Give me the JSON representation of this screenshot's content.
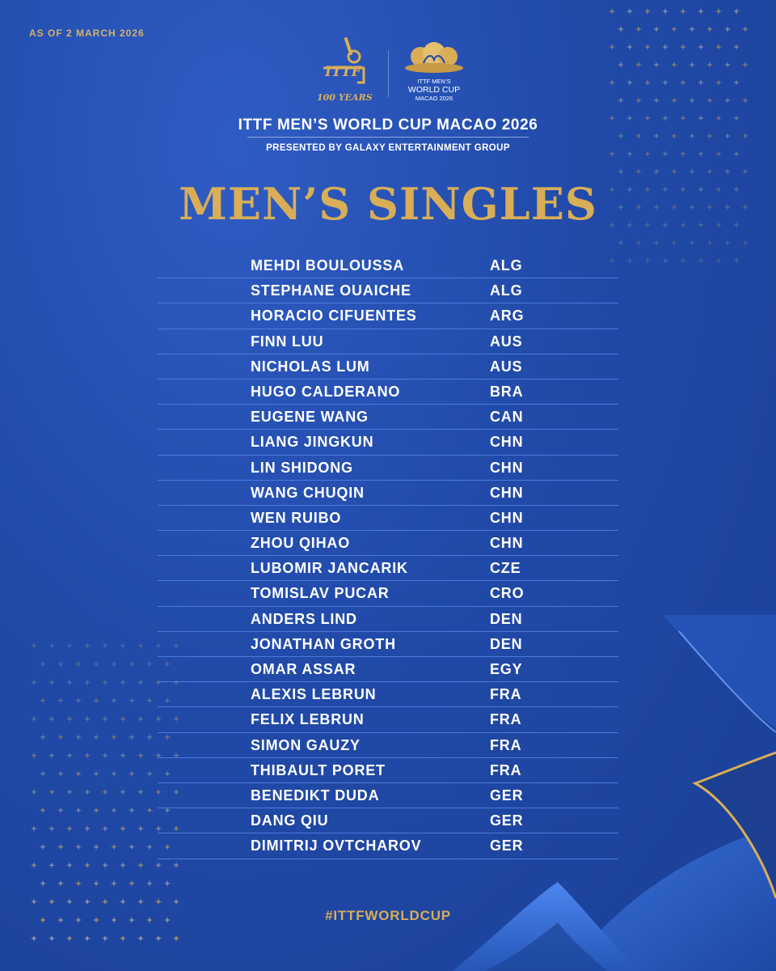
{
  "header": {
    "as_of": "AS OF 2 MARCH 2026",
    "event_title": "ITTF MEN’S WORLD CUP MACAO 2026",
    "presented_by": "PRESENTED BY GALAXY ENTERTAINMENT GROUP",
    "main_title": "MEN’S SINGLES"
  },
  "logos": {
    "ittf_text": "ITTF",
    "ittf_years": "100 YEARS",
    "wc_line1": "ITTF MEN’S",
    "wc_line2": "WORLD CUP",
    "wc_line3": "MACAO 2026"
  },
  "players": [
    {
      "name": "MEHDI BOULOUSSA",
      "country": "ALG"
    },
    {
      "name": "STEPHANE OUAICHE",
      "country": "ALG"
    },
    {
      "name": "HORACIO CIFUENTES",
      "country": "ARG"
    },
    {
      "name": "FINN LUU",
      "country": "AUS"
    },
    {
      "name": "NICHOLAS LUM",
      "country": "AUS"
    },
    {
      "name": "HUGO CALDERANO",
      "country": "BRA"
    },
    {
      "name": "EUGENE WANG",
      "country": "CAN"
    },
    {
      "name": "LIANG JINGKUN",
      "country": "CHN"
    },
    {
      "name": "LIN SHIDONG",
      "country": "CHN"
    },
    {
      "name": "WANG CHUQIN",
      "country": "CHN"
    },
    {
      "name": "WEN RUIBO",
      "country": "CHN"
    },
    {
      "name": "ZHOU QIHAO",
      "country": "CHN"
    },
    {
      "name": "LUBOMIR JANCARIK",
      "country": "CZE"
    },
    {
      "name": "TOMISLAV PUCAR",
      "country": "CRO"
    },
    {
      "name": "ANDERS LIND",
      "country": "DEN"
    },
    {
      "name": "JONATHAN GROTH",
      "country": "DEN"
    },
    {
      "name": "OMAR ASSAR",
      "country": "EGY"
    },
    {
      "name": "ALEXIS LEBRUN",
      "country": "FRA"
    },
    {
      "name": "FELIX LEBRUN",
      "country": "FRA"
    },
    {
      "name": "SIMON GAUZY",
      "country": "FRA"
    },
    {
      "name": "THIBAULT PORET",
      "country": "FRA"
    },
    {
      "name": "BENEDIKT DUDA",
      "country": "GER"
    },
    {
      "name": "DANG QIU",
      "country": "GER"
    },
    {
      "name": "DIMITRIJ OVTCHAROV",
      "country": "GER"
    }
  ],
  "footer": {
    "hashtag": "#ITTFWORLDCUP"
  },
  "colors": {
    "background": "#214aa9",
    "gold": "#d9ae57",
    "divider": "#4a7be0",
    "text": "#ffffff"
  }
}
